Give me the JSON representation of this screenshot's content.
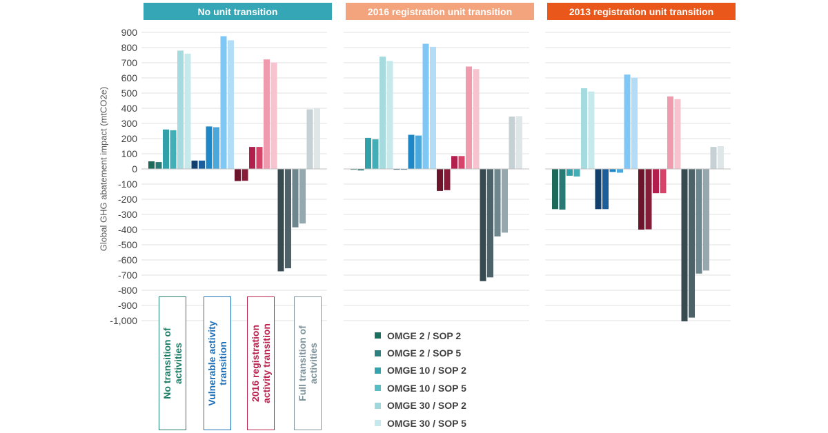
{
  "chart_data": {
    "type": "bar",
    "ylabel": "Global GHG abatement impact (mtCO2e)",
    "ylim": [
      -1000,
      900
    ],
    "yticks": [
      900,
      800,
      700,
      600,
      500,
      400,
      300,
      200,
      100,
      0,
      -100,
      -200,
      -300,
      -400,
      -500,
      -600,
      -700,
      -800,
      -900,
      -1000
    ],
    "ytick_labels": [
      "900",
      "800",
      "700",
      "600",
      "500",
      "400",
      "300",
      "200",
      "100",
      "0",
      "-100",
      "-200",
      "-300",
      "-400",
      "-500",
      "-600",
      "-700",
      "-800",
      "-900",
      "-1,000"
    ],
    "grid": true,
    "panels": [
      {
        "title": "No unit transition",
        "color": "#34A6B6"
      },
      {
        "title": "2016 registration  unit transition",
        "color": "#F4A47C"
      },
      {
        "title": "2013 registration  unit transition",
        "color": "#E9571B"
      }
    ],
    "groups": [
      {
        "label": "No transition of activities",
        "lines": [
          "No transition of",
          "activities"
        ],
        "color": "#1B7B65"
      },
      {
        "label": "Vulnerable activity transition",
        "lines": [
          "Vulnerable  activity",
          "transition"
        ],
        "color": "#1B6FB8"
      },
      {
        "label": "2016 registration activity transition",
        "lines": [
          "2016 registration",
          "activity transition"
        ],
        "color": "#B9234E"
      },
      {
        "label": "Full transition of activities",
        "lines": [
          "Full transition of",
          "activities"
        ],
        "color": "#7E939A"
      }
    ],
    "series": [
      {
        "name": "OMGE 2 / SOP 2"
      },
      {
        "name": "OMGE 2 / SOP 5"
      },
      {
        "name": "OMGE 10 / SOP 2"
      },
      {
        "name": "OMGE 10 / SOP 5"
      },
      {
        "name": "OMGE 30 / SOP 2"
      },
      {
        "name": "OMGE 30 / SOP 5"
      }
    ],
    "legend_swatch_colors": [
      "#1B6E5E",
      "#2E7F80",
      "#34A3AD",
      "#57BCC4",
      "#9ED7DC",
      "#C4E8EB"
    ],
    "bar_colors": [
      [
        "#1E6A5A",
        "#287A74",
        "#31A0A9",
        "#42AEB6",
        "#A5DADE",
        "#C6E9EC"
      ],
      [
        "#12406E",
        "#1A5E9B",
        "#1F87C5",
        "#4AA8DD",
        "#7FC7F5",
        "#B3DDF7"
      ],
      [
        "#6B142C",
        "#861C38",
        "#B21F4C",
        "#D6446A",
        "#F09AAE",
        "#F6C3CF"
      ],
      [
        "#374A50",
        "#4E6369",
        "#6E878E",
        "#95A8AE",
        "#C5D1D5",
        "#DFE6E8"
      ]
    ],
    "values": [
      [
        [
          50,
          45,
          260,
          255,
          780,
          760
        ],
        [
          55,
          55,
          280,
          275,
          875,
          848
        ],
        [
          -80,
          -78,
          145,
          145,
          722,
          702
        ],
        [
          -675,
          -655,
          -385,
          -360,
          393,
          400
        ]
      ],
      [
        [
          -5,
          -10,
          205,
          195,
          740,
          712
        ],
        [
          -5,
          -5,
          225,
          220,
          825,
          805
        ],
        [
          -145,
          -140,
          85,
          85,
          675,
          658
        ],
        [
          -740,
          -715,
          -445,
          -420,
          345,
          348
        ]
      ],
      [
        [
          -265,
          -268,
          -45,
          -50,
          532,
          510
        ],
        [
          -265,
          -265,
          -20,
          -25,
          622,
          602
        ],
        [
          -400,
          -398,
          -160,
          -160,
          478,
          460
        ],
        [
          -1005,
          -980,
          -690,
          -670,
          145,
          150
        ]
      ]
    ]
  }
}
